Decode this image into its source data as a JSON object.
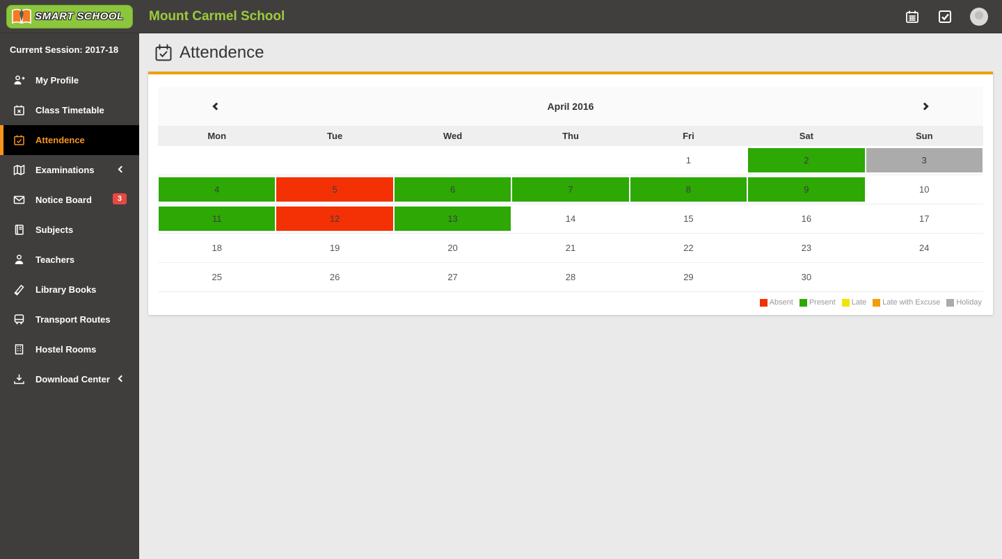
{
  "topbar": {
    "logo_text": "SMART SCHOOL",
    "school_name": "Mount Carmel School"
  },
  "sidebar": {
    "session_label": "Current Session: 2017-18",
    "items": [
      {
        "label": "My Profile",
        "icon": "user-plus-icon"
      },
      {
        "label": "Class Timetable",
        "icon": "calendar-x-icon"
      },
      {
        "label": "Attendence",
        "icon": "calendar-check-icon",
        "active": true
      },
      {
        "label": "Examinations",
        "icon": "map-icon",
        "chevron": true
      },
      {
        "label": "Notice Board",
        "icon": "envelope-icon",
        "badge": "3"
      },
      {
        "label": "Subjects",
        "icon": "book-icon"
      },
      {
        "label": "Teachers",
        "icon": "user-icon"
      },
      {
        "label": "Library Books",
        "icon": "library-book-icon"
      },
      {
        "label": "Transport Routes",
        "icon": "bus-icon"
      },
      {
        "label": "Hostel Rooms",
        "icon": "building-icon"
      },
      {
        "label": "Download Center",
        "icon": "download-icon",
        "chevron": true
      }
    ]
  },
  "main": {
    "page_heading": "Attendence",
    "calendar": {
      "title": "April 2016",
      "day_headers": [
        "Mon",
        "Tue",
        "Wed",
        "Thu",
        "Fri",
        "Sat",
        "Sun"
      ],
      "weeks": [
        [
          {
            "d": ""
          },
          {
            "d": ""
          },
          {
            "d": ""
          },
          {
            "d": ""
          },
          {
            "d": "1"
          },
          {
            "d": "2",
            "s": "present"
          },
          {
            "d": "3",
            "s": "holiday"
          }
        ],
        [
          {
            "d": "4",
            "s": "present"
          },
          {
            "d": "5",
            "s": "absent"
          },
          {
            "d": "6",
            "s": "present"
          },
          {
            "d": "7",
            "s": "present"
          },
          {
            "d": "8",
            "s": "present"
          },
          {
            "d": "9",
            "s": "present"
          },
          {
            "d": "10"
          }
        ],
        [
          {
            "d": "11",
            "s": "present"
          },
          {
            "d": "12",
            "s": "absent"
          },
          {
            "d": "13",
            "s": "present"
          },
          {
            "d": "14"
          },
          {
            "d": "15"
          },
          {
            "d": "16"
          },
          {
            "d": "17"
          }
        ],
        [
          {
            "d": "18"
          },
          {
            "d": "19"
          },
          {
            "d": "20"
          },
          {
            "d": "21"
          },
          {
            "d": "22"
          },
          {
            "d": "23"
          },
          {
            "d": "24"
          }
        ],
        [
          {
            "d": "25"
          },
          {
            "d": "26"
          },
          {
            "d": "27"
          },
          {
            "d": "28"
          },
          {
            "d": "29"
          },
          {
            "d": "30"
          },
          {
            "d": ""
          }
        ]
      ],
      "legend": [
        {
          "label": "Absent",
          "status": "absent"
        },
        {
          "label": "Present",
          "status": "present"
        },
        {
          "label": "Late",
          "status": "late"
        },
        {
          "label": "Late with Excuse",
          "status": "late_excuse"
        },
        {
          "label": "Holiday",
          "status": "holiday"
        }
      ]
    }
  },
  "colors": {
    "present": "#2da805",
    "absent": "#f43005",
    "late": "#f2e205",
    "late_excuse": "#f59d05",
    "holiday": "#ababab",
    "accent_orange": "#f7941e",
    "card_top_border": "#f0a00c",
    "brand_green": "#9ccb3d",
    "badge_red": "#e64942"
  }
}
